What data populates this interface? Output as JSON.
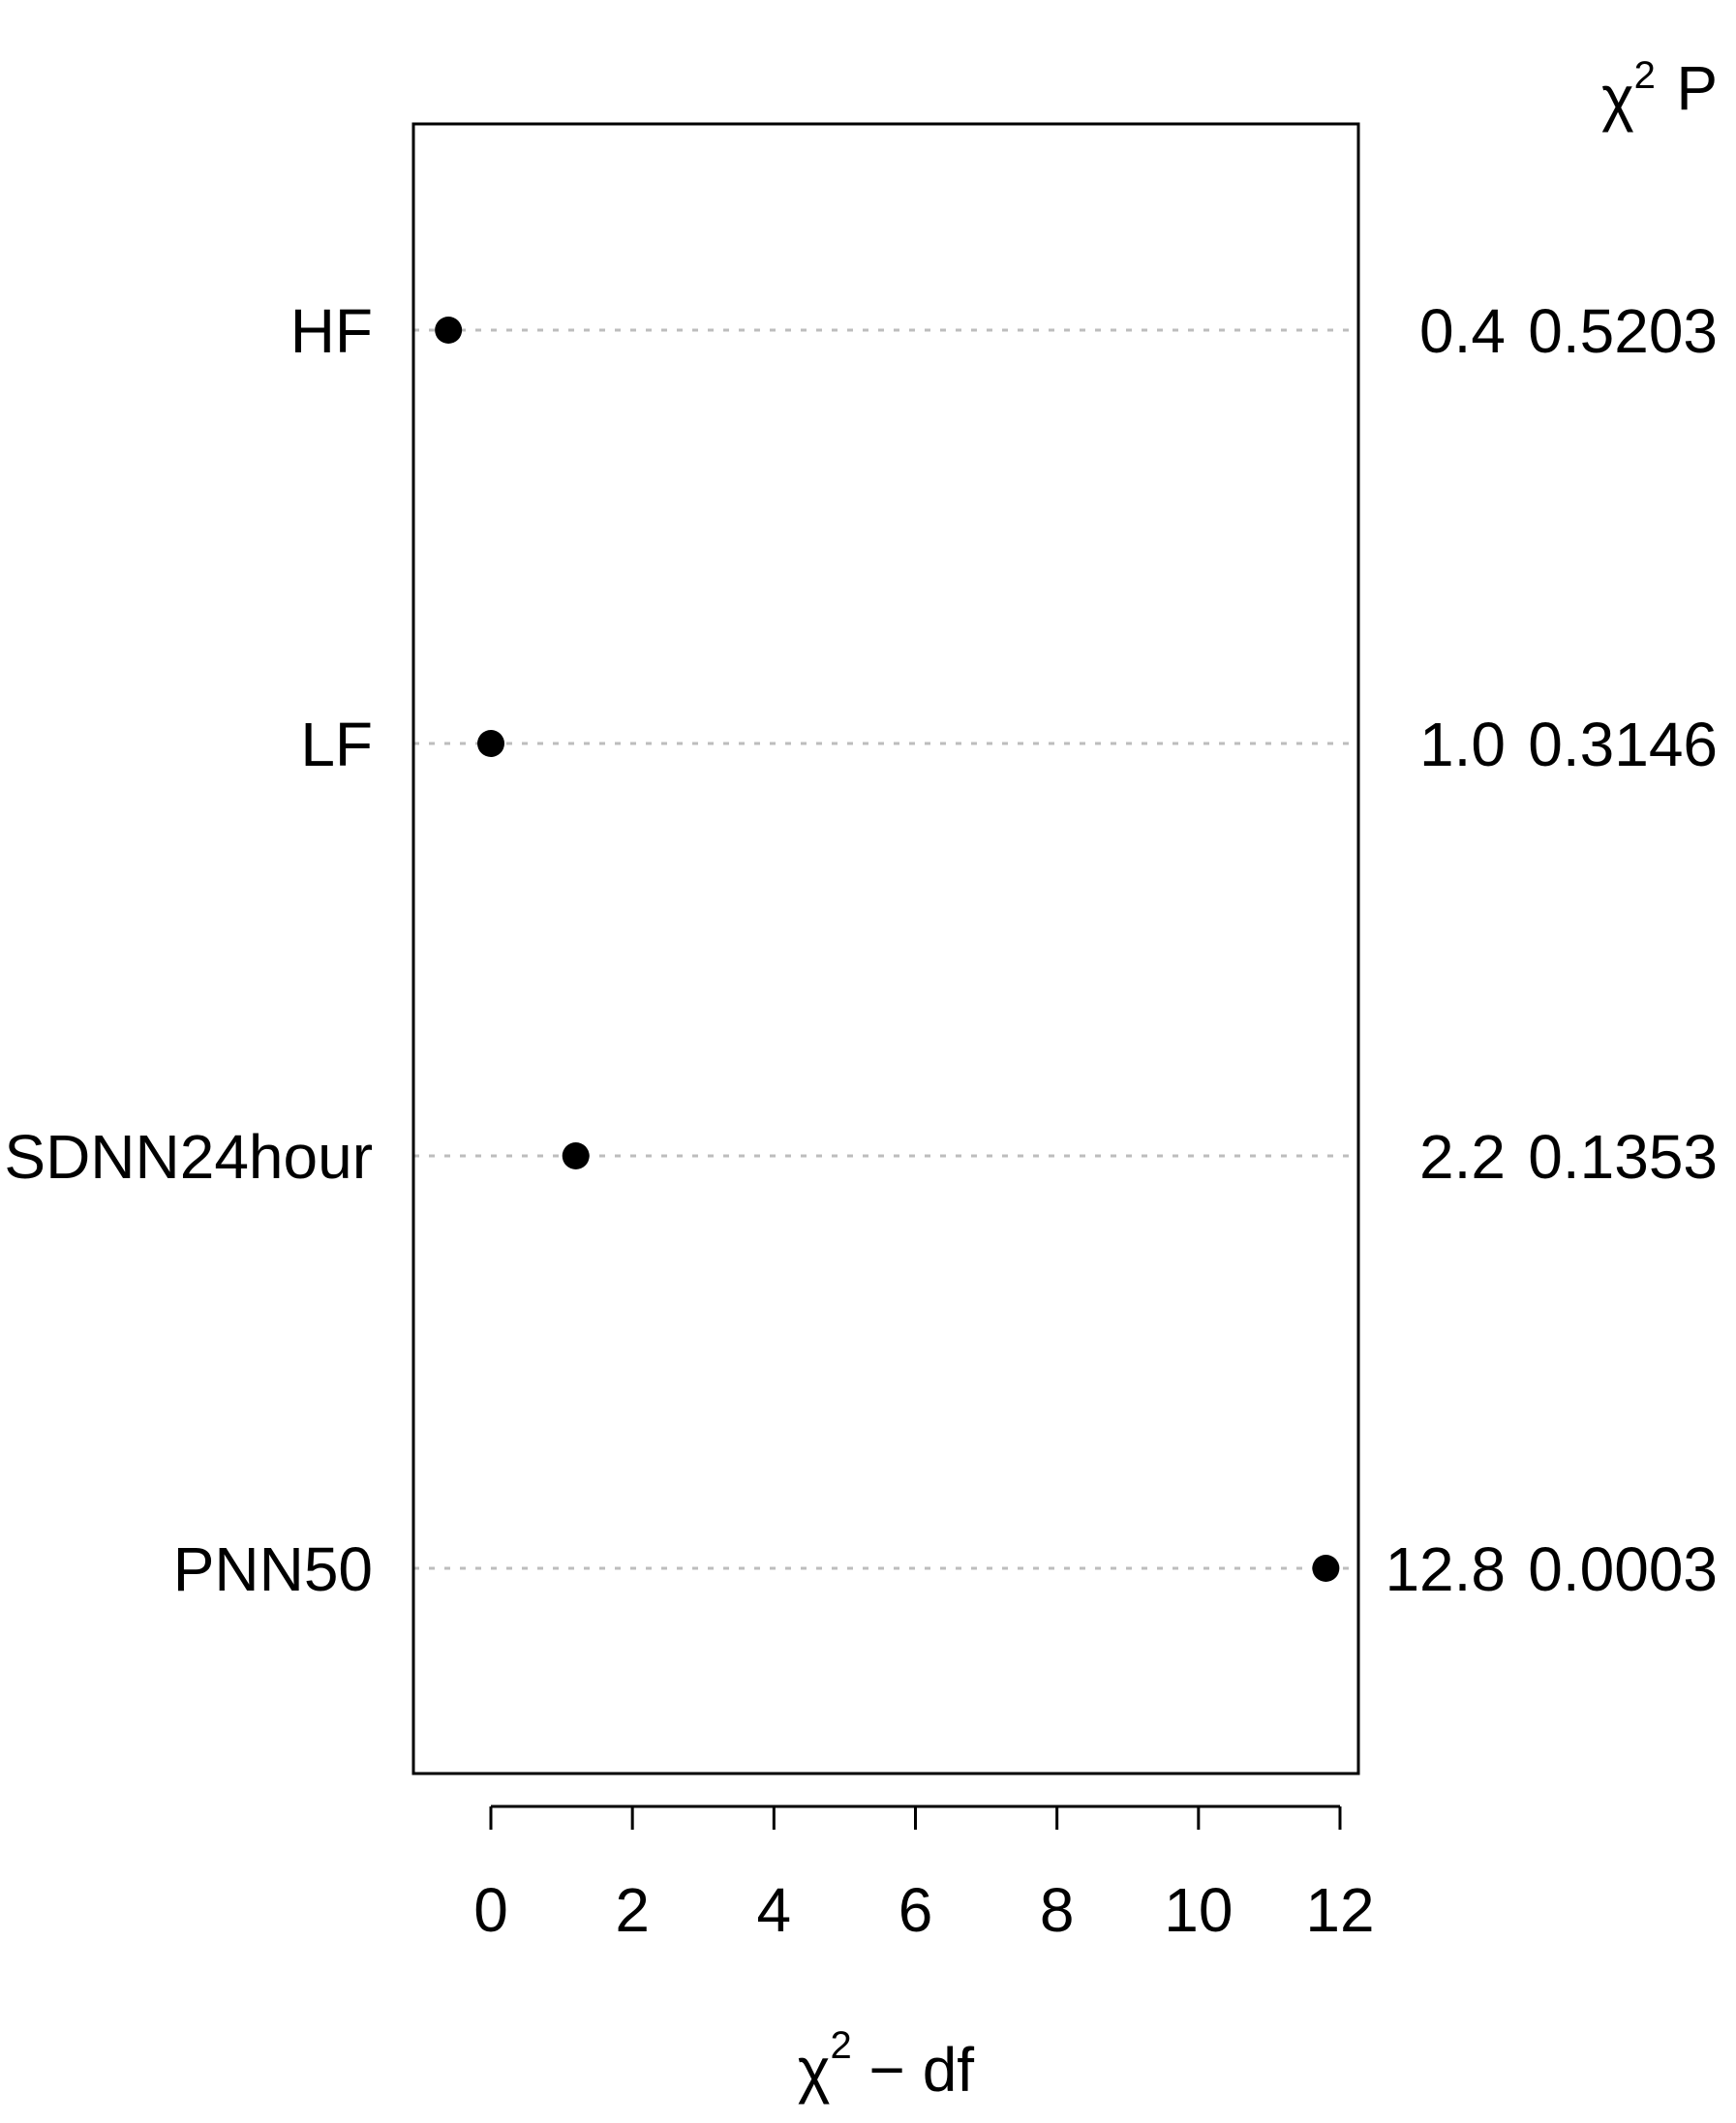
{
  "chart_data": {
    "type": "scatter",
    "xlabel": "χ² − df",
    "xlabel_parts": {
      "base": "χ",
      "sup": "2",
      "rest": " − df"
    },
    "xlim": [
      -1.1,
      12.3
    ],
    "x_ticks": [
      0,
      2,
      4,
      6,
      8,
      10,
      12
    ],
    "grid": "dotted horizontal guide per row",
    "categories": [
      "HF",
      "LF",
      "SDNN24hour",
      "PNN50"
    ],
    "values": [
      -0.6,
      0.0,
      1.2,
      11.8
    ],
    "table_headers": {
      "chisq": "χ²",
      "chisq_base": "χ",
      "chisq_sup": "2",
      "p": "P"
    },
    "table": {
      "chisq": [
        "0.4",
        "1.0",
        "2.2",
        "12.8"
      ],
      "p": [
        "0.5203",
        "0.3146",
        "0.1353",
        "0.0003"
      ]
    }
  }
}
